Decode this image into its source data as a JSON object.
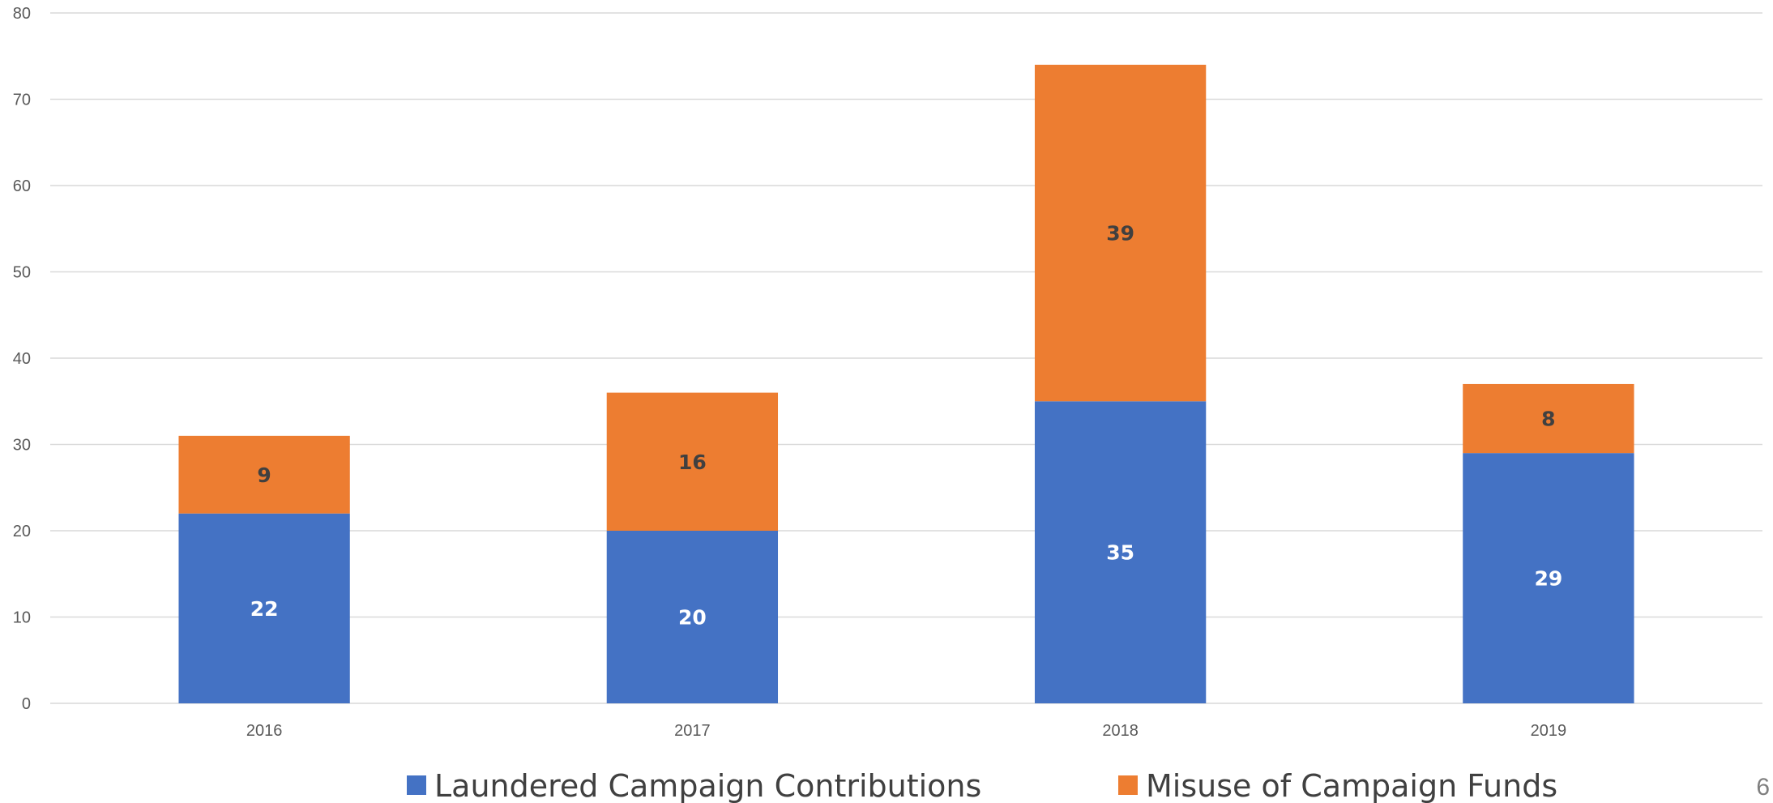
{
  "chart_data": {
    "type": "bar",
    "stacked": true,
    "categories": [
      "2016",
      "2017",
      "2018",
      "2019"
    ],
    "series": [
      {
        "name": "Laundered Campaign Contributions",
        "values": [
          22,
          20,
          35,
          29
        ],
        "color": "#4472C4",
        "label_color": "#FFFFFF"
      },
      {
        "name": "Misuse of Campaign Funds",
        "values": [
          9,
          16,
          39,
          8
        ],
        "color": "#ED7D31",
        "label_color": "#404040"
      }
    ],
    "title": "",
    "xlabel": "",
    "ylabel": "",
    "ylim": [
      0,
      80
    ],
    "yticks": [
      0,
      10,
      20,
      30,
      40,
      50,
      60,
      70,
      80
    ],
    "grid": true,
    "legend_position": "bottom"
  },
  "page_number": "6",
  "colors": {
    "gridline": "#D9D9D9",
    "tick_text": "#595959",
    "legend_text": "#404040"
  }
}
